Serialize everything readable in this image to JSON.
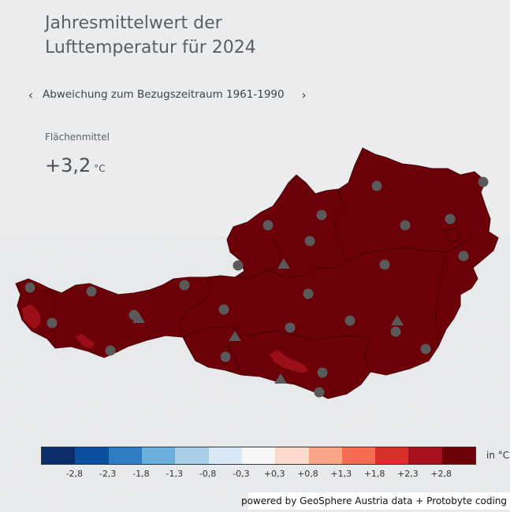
{
  "title": {
    "line1": "Jahresmittelwert der",
    "line2": "Lufttemperatur für 2024"
  },
  "nav": {
    "prev_icon": "chevron-left-icon",
    "next_icon": "chevron-right-icon",
    "prev_glyph": "‹",
    "next_glyph": "›",
    "label": "Abweichung zum Bezugszeitraum 1961-1990"
  },
  "area_mean": {
    "label": "Flächenmittel",
    "value": "+3,2",
    "unit": "°C"
  },
  "map": {
    "fill_color": "#6b0008",
    "station_marker": "circle-icon",
    "mountain_station_marker": "triangle-icon",
    "station_count": 24,
    "mountain_station_count": 5
  },
  "legend": {
    "unit": "in °C",
    "colors": [
      "#0b2e6b",
      "#0a4fa0",
      "#2f7cc2",
      "#6aaedb",
      "#a9cfe7",
      "#d8e8f5",
      "#f7f7f7",
      "#fdd9cb",
      "#f9a587",
      "#f46d53",
      "#d7302b",
      "#a5121c",
      "#6b0008"
    ],
    "ticks": [
      "-2,8",
      "-2,3",
      "-1,8",
      "-1,3",
      "-0,8",
      "-0,3",
      "+0,3",
      "+0,8",
      "+1,3",
      "+1,8",
      "+2,3",
      "+2,8"
    ]
  },
  "credit": "powered by GeoSphere Austria data + Protobyte coding"
}
